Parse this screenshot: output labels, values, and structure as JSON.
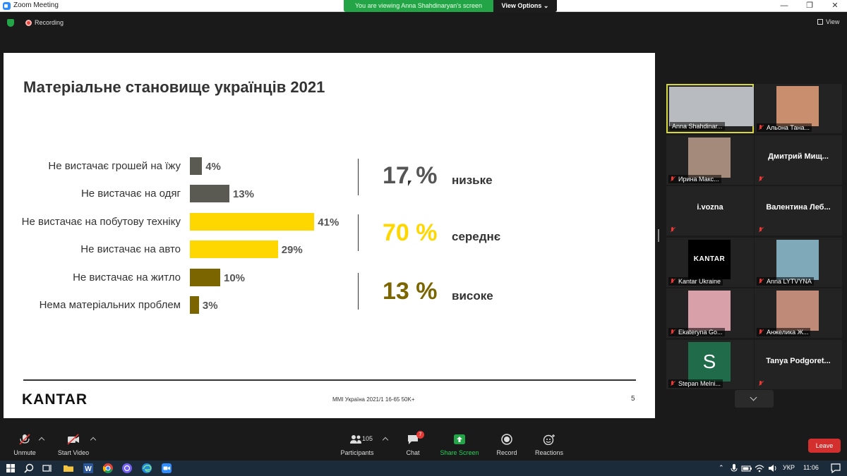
{
  "window": {
    "title": "Zoom Meeting",
    "minimize_glyph": "—",
    "maximize_glyph": "❐",
    "close_glyph": "✕"
  },
  "banner": {
    "message": "You are viewing Anna Shahdinaryan's screen",
    "options_label": "View Options ⌄"
  },
  "status": {
    "recording_label": "Recording",
    "view_label": "View"
  },
  "slide": {
    "title": "Матеріальне становище українців 2021",
    "rows": [
      {
        "label": "Не вистачає грошей на їжу",
        "value_label": "4%",
        "value": 4,
        "color": "#5b5a52"
      },
      {
        "label": "Не вистачає на одяг",
        "value_label": "13%",
        "value": 13,
        "color": "#5b5a52"
      },
      {
        "label": "Не вистачає на побутову техніку",
        "value_label": "41%",
        "value": 41,
        "color": "#ffd700"
      },
      {
        "label": "Не вистачає на авто",
        "value_label": "29%",
        "value": 29,
        "color": "#ffd700"
      },
      {
        "label": "Не вистачає на житло",
        "value_label": "10%",
        "value": 10,
        "color": "#7a6500"
      },
      {
        "label": "Нема матеріальних проблем",
        "value_label": "3%",
        "value": 3,
        "color": "#7a6500"
      }
    ],
    "groups": [
      {
        "pct": "17 %",
        "level": "низьке",
        "color": "#555555"
      },
      {
        "pct": "70 %",
        "level": "середнє",
        "color": "#ffd700"
      },
      {
        "pct": "13 %",
        "level": "високе",
        "color": "#7a6500"
      }
    ],
    "logo_text": "KANTAR",
    "footnote": "MMI Україна 2021/1 16-65 50K+",
    "page_number": "5"
  },
  "participants": [
    {
      "name": "Anna Shahdinar...",
      "type": "video",
      "muted": false,
      "active": true,
      "photo_color": "#b8bcc0"
    },
    {
      "name": "Альона Тана...",
      "type": "photo",
      "muted": true,
      "active": false,
      "photo_color": "#c98e6e"
    },
    {
      "name": "Ирина Макс...",
      "type": "photo",
      "muted": true,
      "active": false,
      "photo_color": "#a48a7b"
    },
    {
      "name": "Дмитрий Мищ...",
      "type": "name",
      "muted": true,
      "active": false
    },
    {
      "name": "i.vozna",
      "type": "name",
      "muted": true,
      "active": false
    },
    {
      "name": "Валентина Леб...",
      "type": "name",
      "muted": true,
      "active": false
    },
    {
      "name": "Kantar Ukraine",
      "type": "kantar",
      "muted": true,
      "active": false,
      "tile_text": "KANTAR"
    },
    {
      "name": "Anna LYTVYNA",
      "type": "photo",
      "muted": true,
      "active": false,
      "photo_color": "#7fa8b8"
    },
    {
      "name": "Ekaterуna Go...",
      "type": "photo",
      "muted": true,
      "active": false,
      "photo_color": "#d8a0a8"
    },
    {
      "name": "Анжелика Ж...",
      "type": "photo",
      "muted": true,
      "active": false,
      "photo_color": "#c08a78"
    },
    {
      "name": "Stepan Melni...",
      "type": "letter",
      "muted": true,
      "active": false,
      "tile_text": "S"
    },
    {
      "name": "Tanya  Podgoret...",
      "type": "name",
      "muted": true,
      "active": false
    }
  ],
  "toolbar": {
    "unmute": "Unmute",
    "start_video": "Start Video",
    "participants": "Participants",
    "participants_count": "105",
    "chat": "Chat",
    "chat_badge": "7",
    "share_screen": "Share Screen",
    "record": "Record",
    "reactions": "Reactions",
    "leave": "Leave"
  },
  "taskbar": {
    "language": "УКР",
    "time": "11:06"
  },
  "colors": {
    "zoom_blue": "#2d8cff",
    "share_green": "#23a547",
    "leave_red": "#d32f2f"
  }
}
